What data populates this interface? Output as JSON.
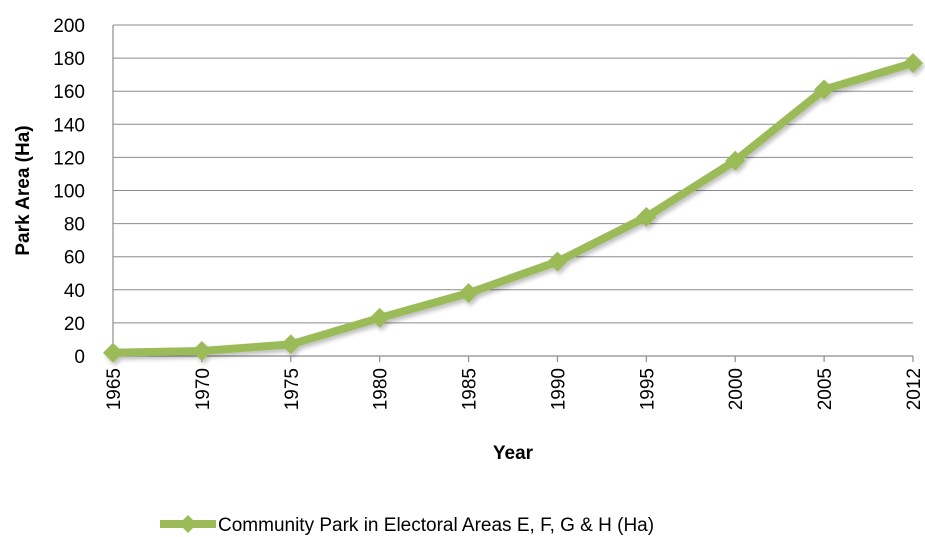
{
  "chart_data": {
    "type": "line",
    "title": "",
    "xlabel": "Year",
    "ylabel": "Park Area (Ha)",
    "categories": [
      "1965",
      "1970",
      "1975",
      "1980",
      "1985",
      "1990",
      "1995",
      "2000",
      "2005",
      "2012"
    ],
    "series": [
      {
        "name": "Community Park in Electoral Areas E, F, G & H (Ha)",
        "values": [
          2,
          3,
          7,
          23,
          38,
          57,
          84,
          118,
          161,
          177
        ],
        "color": "#9bbb59",
        "marker": "diamond"
      }
    ],
    "ylim": [
      0,
      200
    ],
    "yticks": [
      0,
      20,
      40,
      60,
      80,
      100,
      120,
      140,
      160,
      180,
      200
    ],
    "grid": true,
    "legend_position": "bottom"
  }
}
